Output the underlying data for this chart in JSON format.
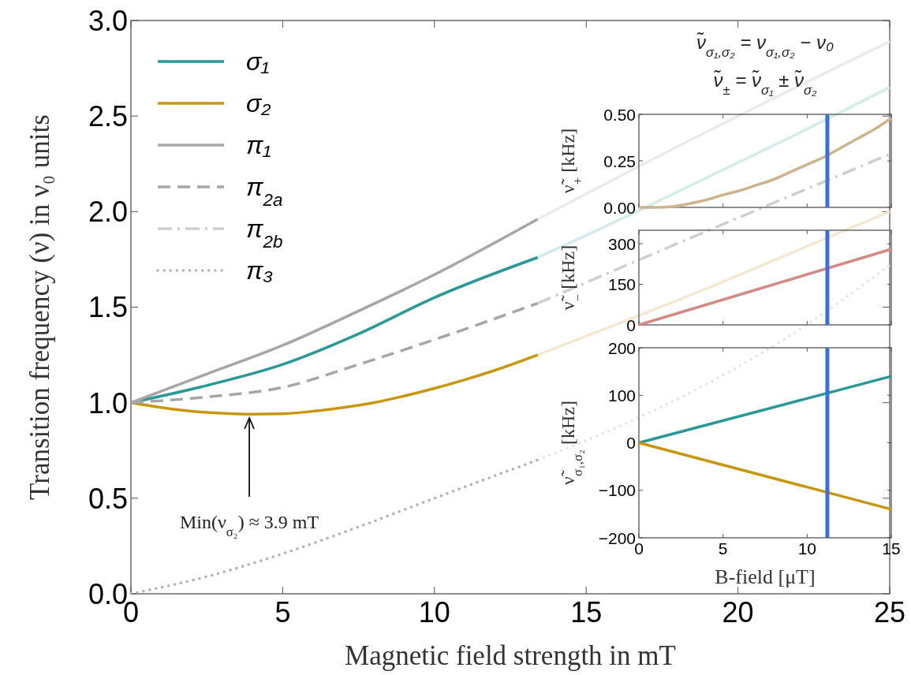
{
  "chart_data": [
    {
      "type": "line",
      "xlabel": "Magnetic field strength in mT",
      "ylabel": "Transition frequency (ν) in ν₀ units",
      "xlim": [
        0,
        25
      ],
      "ylim": [
        0,
        3
      ],
      "xticks": [
        0,
        5,
        10,
        15,
        20,
        25
      ],
      "yticks": [
        {
          "value": 0,
          "label": "0.0"
        },
        {
          "value": 0.5,
          "label": "0.5"
        },
        {
          "value": 1,
          "label": "1.0"
        },
        {
          "value": 1.5,
          "label": "1.5"
        },
        {
          "value": 2,
          "label": "2.0"
        },
        {
          "value": 2.5,
          "label": "2.5"
        },
        {
          "value": 3,
          "label": "3.0"
        }
      ],
      "legend": "top left",
      "series": [
        {
          "color": "#ebebeb",
          "line_style": "solid",
          "x": [
            13.4,
            19,
            25
          ],
          "values": [
            1.96,
            2.42,
            2.89
          ]
        },
        {
          "color": "#d3ebea",
          "line_style": "solid",
          "x": [
            13.4,
            16,
            19,
            22,
            25
          ],
          "values": [
            1.76,
            1.95,
            2.18,
            2.41,
            2.65
          ]
        },
        {
          "color": "#f4e9d0",
          "line_style": "solid",
          "x": [
            13.4,
            16,
            19,
            22,
            25
          ],
          "values": [
            1.25,
            1.41,
            1.6,
            1.8,
            2.0
          ]
        },
        {
          "color": "#e6e6e6",
          "line_style": "dotted",
          "x": [
            13.4,
            16,
            19,
            22,
            25
          ],
          "values": [
            0.7,
            0.87,
            1.1,
            1.38,
            1.72
          ]
        },
        {
          "name": "σ₁",
          "color": "#2a9896",
          "line_style": "solid",
          "x": [
            0,
            2.5,
            5,
            7.5,
            10,
            13.4
          ],
          "values": [
            1,
            1.09,
            1.2,
            1.36,
            1.55,
            1.76
          ]
        },
        {
          "name": "σ₂",
          "color": "#c9960f",
          "line_style": "solid",
          "x": [
            0,
            1,
            2,
            3,
            3.9,
            5,
            6,
            7,
            8,
            9,
            10,
            11,
            12,
            13.4
          ],
          "values": [
            1,
            0.975,
            0.955,
            0.945,
            0.94,
            0.942,
            0.955,
            0.975,
            1.0,
            1.035,
            1.075,
            1.12,
            1.17,
            1.25
          ]
        },
        {
          "name": "π₁",
          "color": "#a6a6a6",
          "line_style": "solid",
          "x": [
            0,
            2.5,
            5,
            7.5,
            10,
            13.4
          ],
          "values": [
            1,
            1.15,
            1.3,
            1.48,
            1.67,
            1.96
          ]
        },
        {
          "name": "π$_{2a}$",
          "color": "#a6a6a6",
          "line_style": "dashed",
          "x": [
            0,
            2.5,
            5,
            7.5,
            10,
            13.4
          ],
          "values": [
            1,
            1.03,
            1.08,
            1.2,
            1.33,
            1.52
          ]
        },
        {
          "name": "π$_{2b}$",
          "color": "#cfcfcf",
          "line_style": "dashdot",
          "x": [
            13.4,
            19,
            25
          ],
          "values": [
            1.52,
            1.9,
            2.3
          ]
        },
        {
          "name": "π₃",
          "color": "#b3b3b3",
          "line_style": "dotted",
          "x": [
            0,
            2.5,
            5,
            7.5,
            10,
            13.4
          ],
          "values": [
            0,
            0.09,
            0.21,
            0.35,
            0.5,
            0.7
          ]
        }
      ],
      "annotations": [
        "Min(ν$_{σ₂}$) ≈ 3.9 mT",
        "ν̃$_{σ₁,σ₂}$ = ν$_{σ₁,σ₂}$ − ν₀",
        "ν̃$_{±}$ = ν̃$_{σ₁}$ ± ν̃$_{σ₂}$"
      ]
    },
    {
      "type": "line",
      "ylabel": "ν̃$_{+}$ [kHz]",
      "xlim": [
        0,
        15
      ],
      "ylim": [
        0,
        0.5
      ],
      "xticks": [
        0,
        5,
        10,
        15
      ],
      "yticks": [
        {
          "value": 0,
          "label": "0.00"
        },
        {
          "value": 0.25,
          "label": "0.25"
        },
        {
          "value": 0.5,
          "label": "0.50"
        }
      ],
      "tick_labels": "y",
      "series": [
        {
          "color": "#cdb48c",
          "line_style": "solid",
          "x": [
            0,
            1,
            2,
            3,
            4,
            5,
            6,
            7,
            8,
            9,
            10,
            11,
            12,
            13,
            14,
            15
          ],
          "values": [
            0,
            0,
            0.004,
            0.02,
            0.04,
            0.067,
            0.09,
            0.12,
            0.15,
            0.19,
            0.23,
            0.27,
            0.32,
            0.37,
            0.42,
            0.48
          ]
        }
      ],
      "ref_lines": [
        {
          "axis": "x",
          "value": 11.2,
          "color": "#3d6fd4"
        }
      ]
    },
    {
      "type": "line",
      "ylabel": "ν̃$_{−}$ [kHz]",
      "xlim": [
        0,
        15
      ],
      "ylim": [
        0,
        350
      ],
      "xticks": [
        0,
        5,
        10,
        15
      ],
      "yticks": [
        0,
        150,
        300
      ],
      "tick_labels": "y",
      "series": [
        {
          "color": "#d48a85",
          "line_style": "solid",
          "x": [
            0,
            15
          ],
          "values": [
            0,
            280
          ]
        }
      ],
      "ref_lines": [
        {
          "axis": "x",
          "value": 11.2,
          "color": "#3d6fd4"
        }
      ]
    },
    {
      "type": "line",
      "xlabel": "B-field [μT]",
      "ylabel": "ν̃$_{σ₁,σ₂}$ [kHz]",
      "xlim": [
        0,
        15
      ],
      "ylim": [
        -200,
        200
      ],
      "xticks": [
        0,
        5,
        10,
        15
      ],
      "yticks": [
        {
          "value": -200,
          "label": "−200"
        },
        {
          "value": -100,
          "label": "−100"
        },
        0,
        100,
        200
      ],
      "series": [
        {
          "color": "#2a9896",
          "line_style": "solid",
          "x": [
            0,
            15
          ],
          "values": [
            0,
            140
          ]
        },
        {
          "color": "#c9960f",
          "line_style": "solid",
          "x": [
            0,
            15
          ],
          "values": [
            0,
            -140
          ]
        }
      ],
      "ref_lines": [
        {
          "axis": "x",
          "value": 11.2,
          "color": "#3d6fd4"
        }
      ]
    }
  ]
}
